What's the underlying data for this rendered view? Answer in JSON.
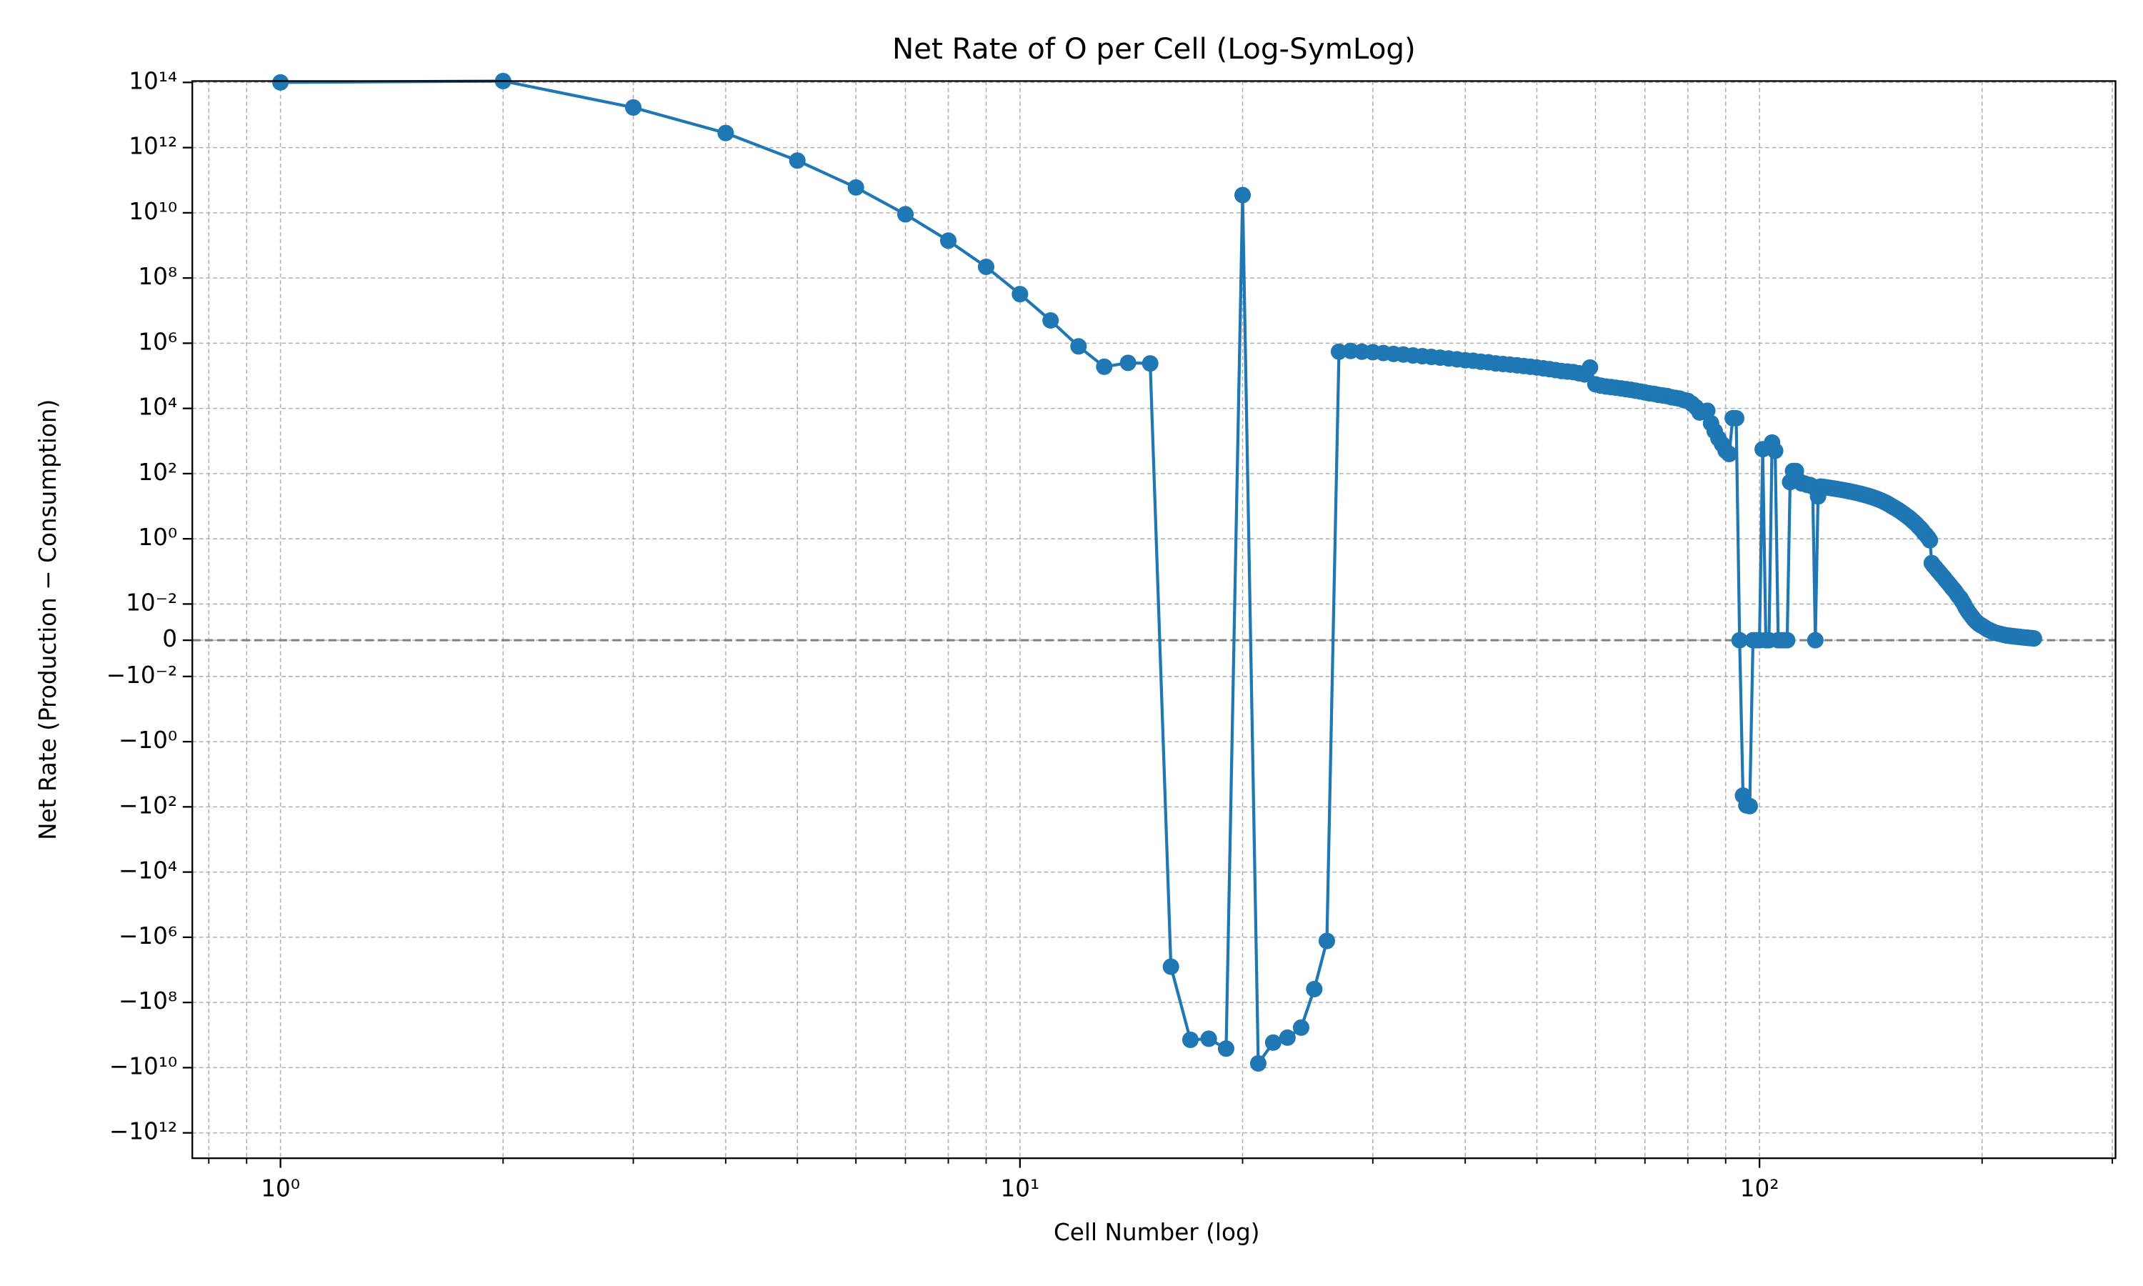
{
  "chart_data": {
    "type": "line",
    "title": "Net Rate of O per Cell (Log-SymLog)",
    "x_label": "Cell Number (log)",
    "y_label": "Net Rate (Production − Consumption)",
    "xscale": "log",
    "yscale": "symlog",
    "linthresh": 0.01,
    "grid": true,
    "marker": "o",
    "hline": 0,
    "hline_color": "#808080",
    "xlim": [
      0.76,
      303
    ],
    "ylim": [
      -6000000000000.0,
      110000000000000.0
    ],
    "xticks": [
      {
        "value": 1,
        "label": "10⁰"
      },
      {
        "value": 10,
        "label": "10¹"
      },
      {
        "value": 100,
        "label": "10²"
      }
    ],
    "xminor_ticks": [
      0.8,
      0.9,
      2,
      3,
      4,
      5,
      6,
      7,
      8,
      9,
      20,
      30,
      40,
      50,
      60,
      70,
      80,
      90,
      200,
      300
    ],
    "yticks": [
      {
        "value": 100000000000000.0,
        "label": "10¹⁴"
      },
      {
        "value": 1000000000000.0,
        "label": "10¹²"
      },
      {
        "value": 10000000000.0,
        "label": "10¹⁰"
      },
      {
        "value": 100000000.0,
        "label": "10⁸"
      },
      {
        "value": 1000000.0,
        "label": "10⁶"
      },
      {
        "value": 10000.0,
        "label": "10⁴"
      },
      {
        "value": 100,
        "label": "10²"
      },
      {
        "value": 1,
        "label": "10⁰"
      },
      {
        "value": 0.01,
        "label": "10⁻²"
      },
      0,
      {
        "value": -0.01,
        "label": "−10⁻²"
      },
      {
        "value": -1,
        "label": "−10⁰"
      },
      {
        "value": -100,
        "label": "−10²"
      },
      {
        "value": -10000.0,
        "label": "−10⁴"
      },
      {
        "value": -1000000.0,
        "label": "−10⁶"
      },
      {
        "value": -100000000.0,
        "label": "−10⁸"
      },
      {
        "value": -10000000000.0,
        "label": "−10¹⁰"
      },
      {
        "value": -1000000000000.0,
        "label": "−10¹²"
      }
    ],
    "x": [
      1,
      2,
      3,
      4,
      5,
      6,
      7,
      8,
      9,
      10,
      11,
      12,
      13,
      14,
      15,
      16,
      17,
      18,
      19,
      20,
      21,
      22,
      23,
      24,
      25,
      26,
      27,
      28,
      29,
      30,
      31,
      32,
      33,
      34,
      35,
      36,
      37,
      38,
      39,
      40,
      41,
      42,
      43,
      44,
      45,
      46,
      47,
      48,
      49,
      50,
      51,
      52,
      53,
      54,
      55,
      56,
      57,
      58,
      59,
      60,
      61,
      62,
      63,
      64,
      65,
      66,
      67,
      68,
      69,
      70,
      71,
      72,
      73,
      74,
      75,
      76,
      77,
      78,
      79,
      80,
      81,
      82,
      83,
      84,
      85,
      86,
      87,
      88,
      89,
      90,
      91,
      92,
      93,
      94,
      95,
      96,
      97,
      98,
      99,
      100,
      101,
      102,
      103,
      104,
      105,
      106,
      107,
      108,
      109,
      110,
      111,
      112,
      113,
      114,
      115,
      116,
      117,
      118,
      119,
      120,
      121,
      122,
      123,
      124,
      125,
      126,
      127,
      128,
      129,
      130,
      131,
      132,
      133,
      134,
      135,
      136,
      137,
      138,
      139,
      140,
      141,
      142,
      143,
      144,
      145,
      146,
      147,
      148,
      149,
      150,
      151,
      152,
      153,
      154,
      155,
      156,
      157,
      158,
      159,
      160,
      161,
      162,
      163,
      164,
      165,
      166,
      167,
      168,
      169,
      170,
      171,
      172,
      173,
      174,
      175,
      176,
      177,
      178,
      179,
      180,
      181,
      182,
      183,
      184,
      185,
      186,
      187,
      188,
      189,
      190,
      191,
      192,
      193,
      194,
      195,
      196,
      197,
      198,
      199,
      200,
      201,
      202,
      203,
      204,
      205,
      206,
      207,
      208,
      209,
      210,
      211,
      212,
      213,
      214,
      215,
      216,
      217,
      218,
      219,
      220,
      221,
      222,
      223,
      224,
      225,
      226,
      227,
      228,
      229,
      230,
      231,
      232,
      233,
      234,
      235
    ],
    "series": [
      {
        "color": "#1f77b4",
        "values": [
          100000000000000.0,
          110000000000000.0,
          17000000000000.0,
          2800000000000.0,
          400000000000.0,
          60000000000.0,
          9000000000.0,
          1400000000.0,
          220000000.0,
          32000000.0,
          5000000.0,
          800000.0,
          190000.0,
          250000.0,
          240000.0,
          -8000000.0,
          -1400000000.0,
          -1300000000.0,
          -2600000000.0,
          35000000000.0,
          -7400000000.0,
          -1700000000.0,
          -1200000000.0,
          -590000000.0,
          -39000000.0,
          -1300000.0,
          550000.0,
          580000.0,
          550000.0,
          530000.0,
          500000.0,
          470000.0,
          450000.0,
          420000.0,
          400000.0,
          380000.0,
          360000.0,
          340000.0,
          320000.0,
          300000.0,
          290000.0,
          270000.0,
          260000.0,
          240000.0,
          230000.0,
          220000.0,
          210000.0,
          200000.0,
          190000.0,
          180000.0,
          170000.0,
          160000.0,
          150000.0,
          140000.0,
          135000.0,
          130000.0,
          120000.0,
          110000.0,
          180000.0,
          55000.0,
          50000.0,
          47000.0,
          45000.0,
          43000.0,
          41000.0,
          39000.0,
          37000.0,
          35000.0,
          33000.0,
          31000.0,
          29000.0,
          28000.0,
          26000.0,
          25000.0,
          24000.0,
          22000.0,
          21000.0,
          20000.0,
          18000.0,
          17000.0,
          14000.0,
          11000.0,
          7500.0,
          8000.0,
          8500.0,
          3500.0,
          2000.0,
          1200.0,
          800,
          500,
          400,
          5000.0,
          5000.0,
          0,
          -45,
          -90,
          -95,
          0,
          0,
          0,
          560,
          0,
          0,
          900,
          500,
          0,
          0,
          0,
          0,
          55,
          120,
          120,
          60,
          50,
          50,
          45,
          45,
          40,
          0,
          20,
          40,
          39,
          38,
          37,
          36,
          35,
          34,
          33,
          32,
          31,
          30,
          29,
          28,
          27,
          26,
          25,
          24,
          23,
          22,
          21,
          20,
          19,
          18,
          17,
          16,
          15,
          14,
          13,
          12,
          11,
          10,
          9.2,
          8.4,
          7.7,
          7.0,
          6.3,
          5.7,
          5.1,
          4.6,
          4.1,
          3.6,
          3.2,
          2.8,
          2.4,
          2.1,
          1.8,
          1.5,
          1.3,
          1.1,
          0.9,
          0.18,
          0.15,
          0.13,
          0.11,
          0.095,
          0.081,
          0.07,
          0.06,
          0.051,
          0.044,
          0.038,
          0.032,
          0.028,
          0.024,
          0.02,
          0.017,
          0.015,
          0.012,
          0.01,
          0.009,
          0.0083,
          0.0076,
          0.007,
          0.0064,
          0.0058,
          0.0053,
          0.0049,
          0.0045,
          0.0042,
          0.004,
          0.0037,
          0.0034,
          0.0031,
          0.0029,
          0.0027,
          0.0025,
          0.0023,
          0.0021,
          0.002,
          0.0019,
          0.0018,
          0.0017,
          0.0016,
          0.0015,
          0.0014,
          0.0013,
          0.0013,
          0.0012,
          0.0012,
          0.0011,
          0.0011,
          0.001,
          0.001,
          0.00095,
          0.0009,
          0.00085,
          0.0008,
          0.00075,
          0.0007,
          0.0007,
          0.00065,
          0.0006,
          0.0006,
          0.00055,
          0.0005
        ]
      }
    ]
  }
}
